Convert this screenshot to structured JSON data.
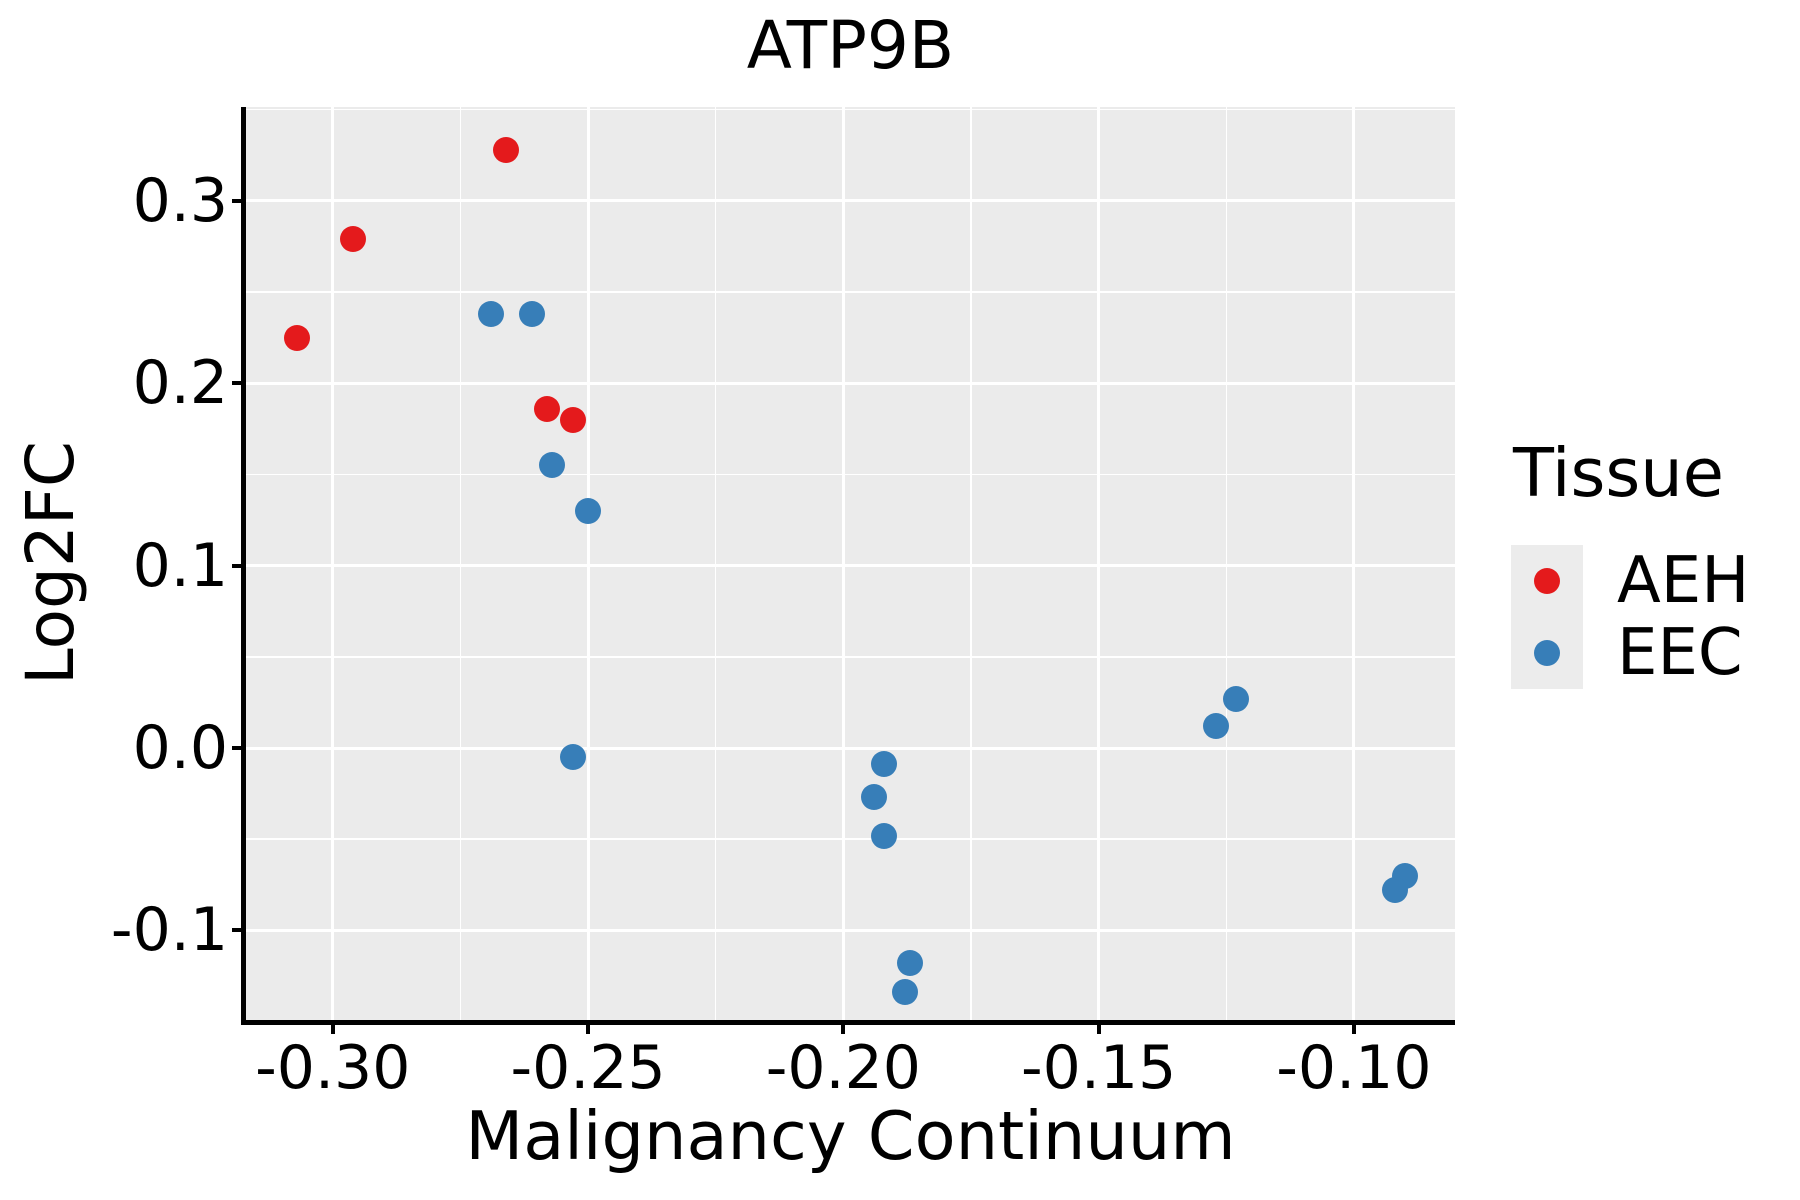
{
  "chart_data": {
    "type": "scatter",
    "title": "ATP9B",
    "xlabel": "Malignancy Continuum",
    "ylabel": "Log2FC",
    "xlim": [
      -0.317,
      -0.0802
    ],
    "ylim": [
      -0.1491,
      0.3514
    ],
    "grid": true,
    "panel_bg": "#EBEBEB",
    "grid_color": "#FFFFFF",
    "x_ticks": [
      {
        "value": -0.3,
        "label": "-0.30"
      },
      {
        "value": -0.25,
        "label": "-0.25"
      },
      {
        "value": -0.2,
        "label": "-0.20"
      },
      {
        "value": -0.15,
        "label": "-0.15"
      },
      {
        "value": -0.1,
        "label": "-0.10"
      }
    ],
    "y_ticks": [
      {
        "value": 0.3,
        "label": "0.3"
      },
      {
        "value": 0.2,
        "label": "0.2"
      },
      {
        "value": 0.1,
        "label": "0.1"
      },
      {
        "value": 0.0,
        "label": "0.0"
      },
      {
        "value": -0.1,
        "label": "-0.1"
      }
    ],
    "x_minor_ticks": [
      -0.275,
      -0.225,
      -0.175,
      -0.125
    ],
    "y_minor_ticks": [
      0.35,
      0.25,
      0.15,
      0.05,
      -0.05
    ],
    "legend": {
      "title": "Tissue",
      "position": "right",
      "entries": [
        {
          "label": "AEH",
          "color": "#E41A1C"
        },
        {
          "label": "EEC",
          "color": "#377EB8"
        }
      ]
    },
    "series": [
      {
        "name": "AEH",
        "color": "#E41A1C",
        "points": [
          [
            -0.266,
            0.328
          ],
          [
            -0.296,
            0.279
          ],
          [
            -0.307,
            0.225
          ],
          [
            -0.258,
            0.186
          ],
          [
            -0.253,
            0.18
          ]
        ]
      },
      {
        "name": "EEC",
        "color": "#377EB8",
        "points": [
          [
            -0.269,
            0.238
          ],
          [
            -0.261,
            0.238
          ],
          [
            -0.257,
            0.155
          ],
          [
            -0.25,
            0.13
          ],
          [
            -0.253,
            -0.005
          ],
          [
            -0.192,
            -0.009
          ],
          [
            -0.194,
            -0.027
          ],
          [
            -0.192,
            -0.048
          ],
          [
            -0.187,
            -0.118
          ],
          [
            -0.188,
            -0.134
          ],
          [
            -0.127,
            0.012
          ],
          [
            -0.123,
            0.027
          ],
          [
            -0.09,
            -0.07
          ],
          [
            -0.092,
            -0.078
          ]
        ]
      }
    ]
  }
}
